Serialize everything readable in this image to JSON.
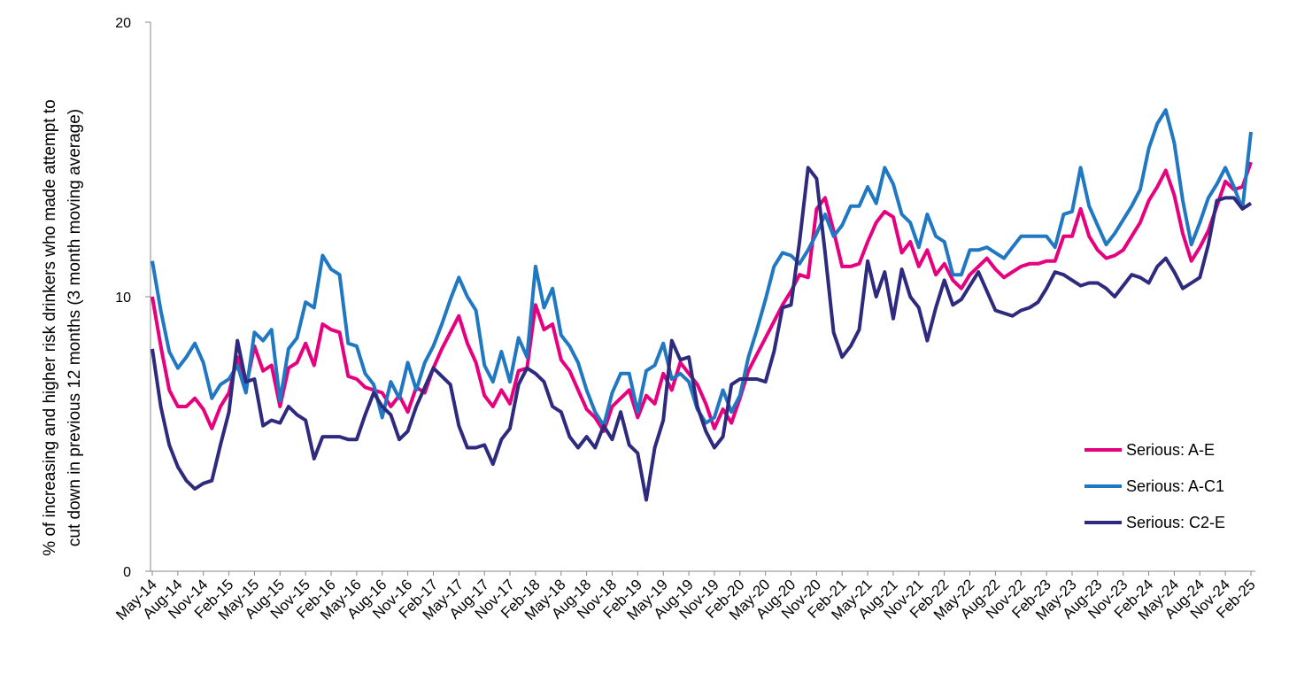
{
  "chart_data": {
    "type": "line",
    "ylabel": [
      "% of increasing and higher risk drinkers who made attempt to",
      "cut down in previous 12 months (3 month moving average)"
    ],
    "categories": [
      "May-14",
      null,
      null,
      "Aug-14",
      null,
      null,
      "Nov-14",
      null,
      null,
      "Feb-15",
      null,
      null,
      "May-15",
      null,
      null,
      "Aug-15",
      null,
      null,
      "Nov-15",
      null,
      null,
      "Feb-16",
      null,
      null,
      "May-16",
      null,
      null,
      "Aug-16",
      null,
      null,
      "Nov-16",
      null,
      null,
      "Feb-17",
      null,
      null,
      "May-17",
      null,
      null,
      "Aug-17",
      null,
      null,
      "Nov-17",
      null,
      null,
      "Feb-18",
      null,
      null,
      "May-18",
      null,
      null,
      "Aug-18",
      null,
      null,
      "Nov-18",
      null,
      null,
      "Feb-19",
      null,
      null,
      "May-19",
      null,
      null,
      "Aug-19",
      null,
      null,
      "Nov-19",
      null,
      null,
      "Feb-20",
      null,
      null,
      "May-20",
      null,
      null,
      "Aug-20",
      null,
      null,
      "Nov-20",
      null,
      null,
      "Feb-21",
      null,
      null,
      "May-21",
      null,
      null,
      "Aug-21",
      null,
      null,
      "Nov-21",
      null,
      null,
      "Feb-22",
      null,
      null,
      "May-22",
      null,
      null,
      "Aug-22",
      null,
      null,
      "Nov-22",
      null,
      null,
      "Feb-23",
      null,
      null,
      "May-23",
      null,
      null,
      "Aug-23",
      null,
      null,
      "Nov-23",
      null,
      null,
      "Feb-24",
      null,
      null,
      "May-24",
      null,
      null,
      "Aug-24",
      null,
      null,
      "Nov-24",
      null,
      null,
      "Feb-25"
    ],
    "series": [
      {
        "name": "Serious: A-E",
        "color": "#e6007e",
        "values": [
          10.0,
          8.2,
          6.6,
          6.0,
          6.0,
          6.3,
          5.9,
          5.2,
          6.0,
          6.5,
          7.8,
          6.7,
          8.2,
          7.3,
          7.5,
          6.0,
          7.4,
          7.6,
          8.3,
          7.5,
          9.0,
          8.8,
          8.7,
          7.1,
          7.0,
          6.7,
          6.6,
          6.5,
          6.0,
          6.4,
          5.8,
          6.7,
          6.5,
          7.4,
          8.1,
          8.7,
          9.3,
          8.3,
          7.6,
          6.4,
          6.0,
          6.6,
          6.1,
          7.3,
          7.4,
          9.7,
          8.8,
          9.0,
          7.7,
          7.3,
          6.6,
          5.9,
          5.6,
          5.1,
          6.0,
          6.3,
          6.6,
          5.6,
          6.4,
          6.1,
          7.2,
          6.6,
          7.6,
          7.2,
          6.8,
          6.1,
          5.2,
          5.9,
          5.4,
          6.3,
          7.3,
          7.9,
          8.5,
          9.1,
          9.7,
          10.2,
          10.8,
          10.7,
          13.2,
          13.6,
          12.4,
          11.1,
          11.1,
          11.2,
          12.0,
          12.7,
          13.1,
          12.9,
          11.6,
          12.0,
          11.1,
          11.7,
          10.8,
          11.2,
          10.6,
          10.3,
          10.8,
          11.1,
          11.4,
          11.0,
          10.7,
          10.9,
          11.1,
          11.2,
          11.2,
          11.3,
          11.3,
          12.2,
          12.2,
          13.2,
          12.2,
          11.7,
          11.4,
          11.5,
          11.7,
          12.2,
          12.7,
          13.5,
          14.0,
          14.6,
          13.7,
          12.3,
          11.3,
          11.8,
          12.4,
          13.3,
          14.2,
          13.9,
          14.0,
          14.9
        ]
      },
      {
        "name": "Serious: A-C1",
        "color": "#1f78c1",
        "values": [
          11.3,
          9.5,
          8.0,
          7.4,
          7.8,
          8.3,
          7.6,
          6.3,
          6.8,
          7.0,
          7.5,
          6.5,
          8.7,
          8.4,
          8.8,
          6.2,
          8.1,
          8.5,
          9.8,
          9.6,
          11.5,
          11.0,
          10.8,
          8.3,
          8.2,
          7.2,
          6.8,
          5.6,
          6.9,
          6.3,
          7.6,
          6.6,
          7.6,
          8.2,
          9.0,
          9.9,
          10.7,
          10.0,
          9.5,
          7.5,
          6.9,
          8.0,
          6.9,
          8.5,
          7.8,
          11.1,
          9.6,
          10.3,
          8.6,
          8.2,
          7.6,
          6.6,
          5.8,
          5.3,
          6.5,
          7.2,
          7.2,
          5.8,
          7.3,
          7.5,
          8.3,
          7.0,
          7.2,
          6.9,
          5.9,
          5.4,
          5.6,
          6.6,
          5.8,
          6.4,
          7.8,
          8.8,
          9.9,
          11.1,
          11.6,
          11.5,
          11.2,
          11.7,
          12.3,
          13.0,
          12.2,
          12.6,
          13.3,
          13.3,
          14.0,
          13.4,
          14.7,
          14.1,
          13.0,
          12.7,
          11.8,
          13.0,
          12.2,
          12.0,
          10.8,
          10.8,
          11.7,
          11.7,
          11.8,
          11.6,
          11.4,
          11.8,
          12.2,
          12.2,
          12.2,
          12.2,
          11.8,
          13.0,
          13.1,
          14.7,
          13.3,
          12.6,
          11.9,
          12.3,
          12.8,
          13.3,
          13.9,
          15.4,
          16.3,
          16.8,
          15.6,
          13.5,
          11.9,
          12.7,
          13.6,
          14.1,
          14.7,
          14.0,
          13.2,
          16.0
        ]
      },
      {
        "name": "Serious: C2-E",
        "color": "#2e2a7e",
        "values": [
          8.1,
          6.0,
          4.6,
          3.8,
          3.3,
          3.0,
          3.2,
          3.3,
          4.6,
          5.8,
          8.4,
          6.9,
          7.0,
          5.3,
          5.5,
          5.4,
          6.0,
          5.7,
          5.5,
          4.1,
          4.9,
          4.9,
          4.9,
          4.8,
          4.8,
          5.7,
          6.5,
          6.0,
          5.7,
          4.8,
          5.1,
          6.0,
          6.7,
          7.4,
          7.1,
          6.8,
          5.3,
          4.5,
          4.5,
          4.6,
          3.9,
          4.8,
          5.2,
          6.8,
          7.4,
          7.2,
          6.9,
          6.0,
          5.8,
          4.9,
          4.5,
          4.9,
          4.5,
          5.3,
          4.8,
          5.8,
          4.6,
          4.3,
          2.6,
          4.5,
          5.5,
          8.4,
          7.7,
          7.8,
          6.0,
          5.1,
          4.5,
          4.9,
          6.8,
          7.0,
          7.0,
          7.0,
          6.9,
          8.0,
          9.6,
          9.7,
          12.0,
          14.7,
          14.3,
          11.6,
          8.7,
          7.8,
          8.2,
          8.8,
          11.3,
          10.0,
          10.9,
          9.2,
          11.0,
          10.0,
          9.6,
          8.4,
          9.6,
          10.6,
          9.7,
          9.9,
          10.4,
          10.9,
          10.2,
          9.5,
          9.4,
          9.3,
          9.5,
          9.6,
          9.8,
          10.3,
          10.9,
          10.8,
          10.6,
          10.4,
          10.5,
          10.5,
          10.3,
          10.0,
          10.4,
          10.8,
          10.7,
          10.5,
          11.1,
          11.4,
          10.9,
          10.3,
          10.5,
          10.7,
          11.9,
          13.5,
          13.6,
          13.6,
          13.2,
          13.4
        ]
      }
    ],
    "ylim": [
      0,
      20
    ],
    "yticks": [
      0,
      10,
      20
    ],
    "grid": false,
    "legend": "right"
  }
}
